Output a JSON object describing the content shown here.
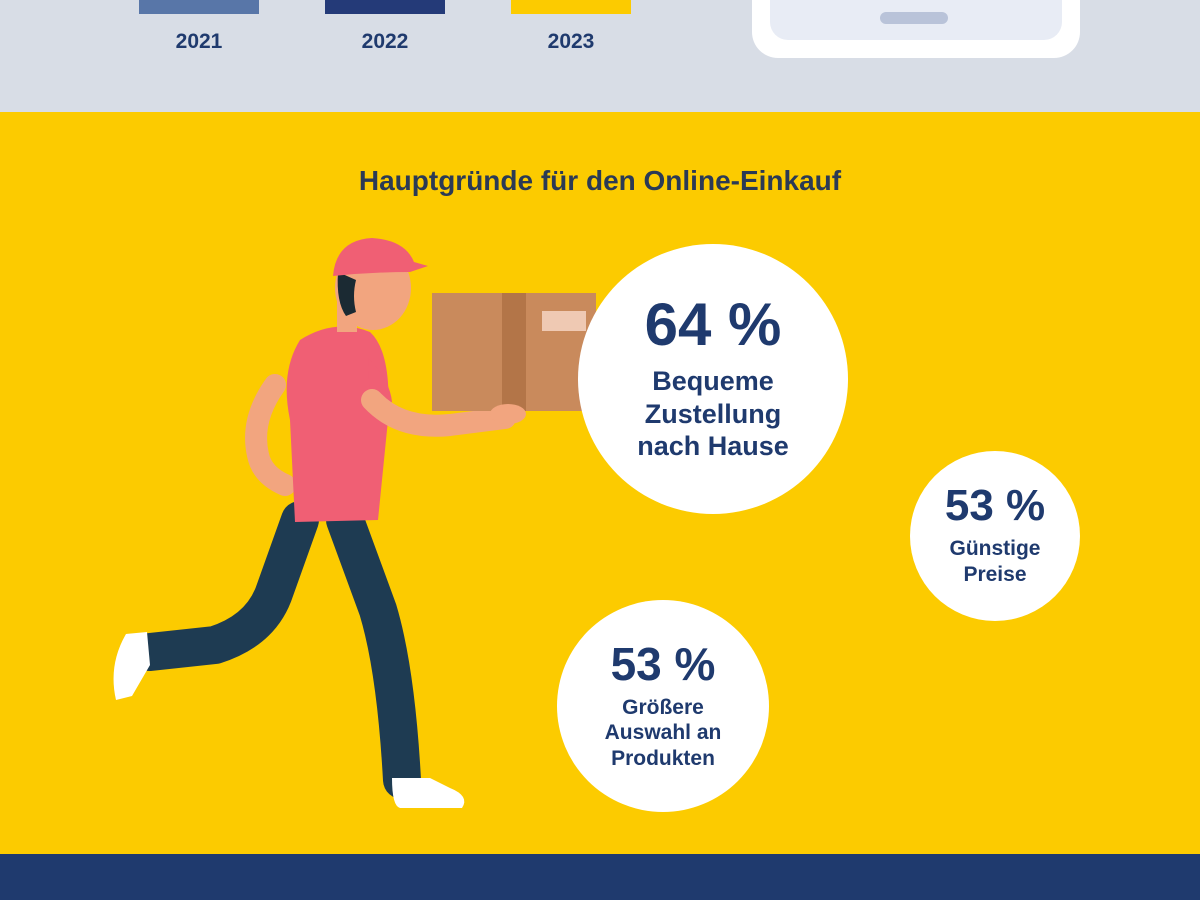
{
  "years": [
    {
      "label": "2021",
      "color": "#5876a8"
    },
    {
      "label": "2022",
      "color": "#243a78"
    },
    {
      "label": "2023",
      "color": "#fccb00"
    }
  ],
  "section_title": "Hauptgründe für den Online-Einkauf",
  "reasons": [
    {
      "percent": "64 %",
      "label": "Bequeme\nZustellung\nnach Hause"
    },
    {
      "percent": "53 %",
      "label": "Günstige\nPreise"
    },
    {
      "percent": "53 %",
      "label": "Größere\nAuswahl an\nProdukten"
    }
  ],
  "colors": {
    "top_band": "#d8dde6",
    "yellow": "#fccb00",
    "navy": "#1f3a6e",
    "title_text": "#2b3a55"
  },
  "illustration": {
    "icon": "delivery-courier-carrying-box-icon"
  }
}
